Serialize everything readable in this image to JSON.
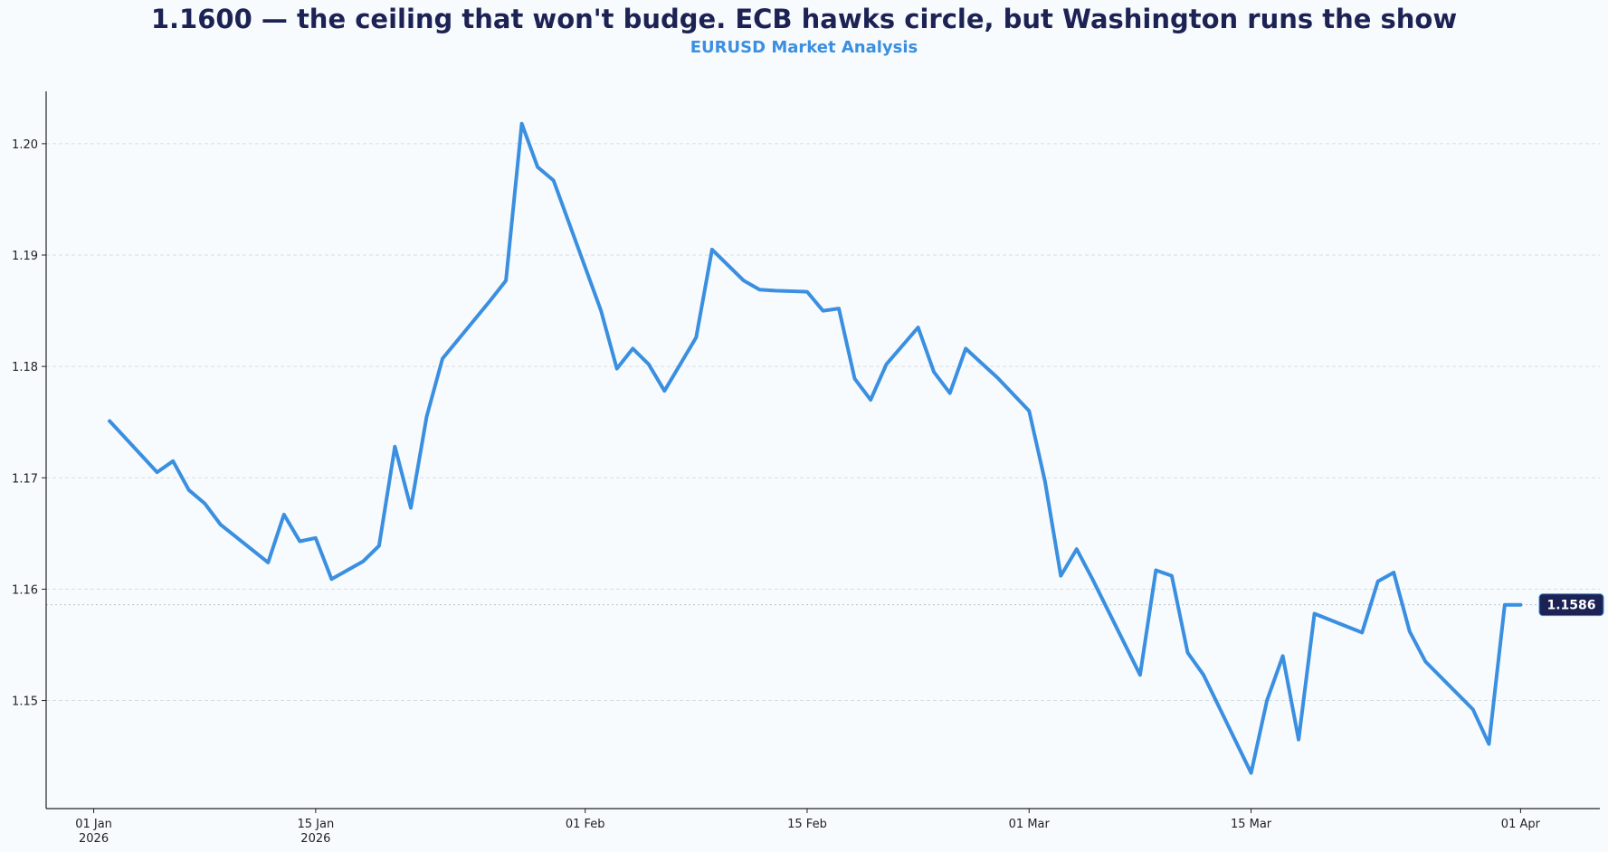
{
  "chart_data": {
    "type": "line",
    "title": "1.1600 — the ceiling that won't budge. ECB hawks circle, but Washington runs the show",
    "subtitle": "EURUSD Market Analysis",
    "xlabel": "",
    "ylabel": "",
    "x_start": "2025-12-29",
    "xlim_days": [
      0,
      98
    ],
    "ylim": [
      1.1403,
      1.2047
    ],
    "grid": "horizontal-dashed",
    "y_ticks": [
      {
        "value": 1.15,
        "label": "1.15"
      },
      {
        "value": 1.16,
        "label": "1.16"
      },
      {
        "value": 1.17,
        "label": "1.17"
      },
      {
        "value": 1.18,
        "label": "1.18"
      },
      {
        "value": 1.19,
        "label": "1.19"
      },
      {
        "value": 1.2,
        "label": "1.20"
      }
    ],
    "x_ticks": [
      {
        "day": 3,
        "label": "01 Jan",
        "sublabel": "2026"
      },
      {
        "day": 17,
        "label": "15 Jan",
        "sublabel": "2026"
      },
      {
        "day": 34,
        "label": "01 Feb",
        "sublabel": ""
      },
      {
        "day": 48,
        "label": "15 Feb",
        "sublabel": ""
      },
      {
        "day": 62,
        "label": "01 Mar",
        "sublabel": ""
      },
      {
        "day": 76,
        "label": "15 Mar",
        "sublabel": ""
      },
      {
        "day": 93,
        "label": "01 Apr",
        "sublabel": ""
      }
    ],
    "series": [
      {
        "name": "EURUSD",
        "color": "#3a8fe0",
        "days": [
          4,
          7,
          8,
          9,
          10,
          11,
          14,
          15,
          16,
          17,
          18,
          20,
          21,
          22,
          23,
          24,
          25,
          28,
          29,
          30,
          31,
          32,
          35,
          36,
          37,
          38,
          39,
          41,
          42,
          44,
          45,
          46,
          48,
          49,
          50,
          51,
          52,
          53,
          55,
          56,
          57,
          58,
          59,
          60,
          62,
          63,
          64,
          65,
          66,
          69,
          70,
          71,
          72,
          73,
          76,
          77,
          78,
          79,
          80,
          83,
          84,
          85,
          86,
          87,
          90,
          91,
          92,
          93
        ],
        "values": [
          1.1751,
          1.1705,
          1.1715,
          1.1689,
          1.1677,
          1.1658,
          1.1624,
          1.1667,
          1.1643,
          1.1646,
          1.1609,
          1.1625,
          1.1639,
          1.1728,
          1.1673,
          1.1755,
          1.1807,
          1.1859,
          1.1877,
          1.2018,
          1.1979,
          1.1967,
          1.185,
          1.1798,
          1.1816,
          1.1802,
          1.1778,
          1.1826,
          1.1905,
          1.1877,
          1.1869,
          1.1868,
          1.1867,
          1.185,
          1.1852,
          1.1789,
          1.177,
          1.1802,
          1.1835,
          1.1795,
          1.1776,
          1.1816,
          1.1803,
          1.179,
          1.176,
          1.1697,
          1.1612,
          1.1636,
          1.1609,
          1.1523,
          1.1617,
          1.1612,
          1.1543,
          1.1523,
          1.1435,
          1.15,
          1.154,
          1.1465,
          1.1578,
          1.1561,
          1.1607,
          1.1615,
          1.1562,
          1.1535,
          1.1492,
          1.1461,
          1.1586,
          1.1586
        ]
      }
    ],
    "last_value": 1.1586,
    "last_value_label": "1.1586",
    "colors": {
      "line": "#3a8fe0",
      "badge": "#1c2254",
      "title": "#1c2254",
      "subtitle": "#3a8fe0",
      "grid": "#d8dde3",
      "background": "#f8fbfd"
    }
  }
}
